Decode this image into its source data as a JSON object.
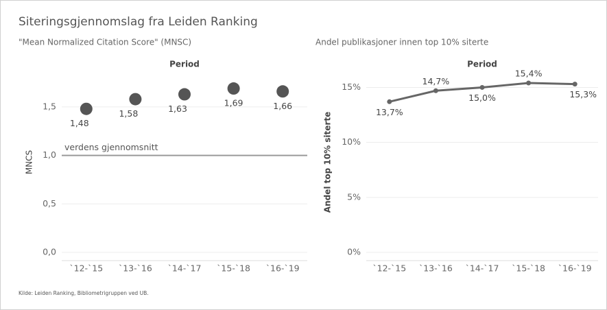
{
  "title": "Siteringsgjennomslag fra Leiden Ranking",
  "footer": "Kilde: Leiden Ranking, Bibliometrigruppen ved UB.",
  "chart_data": [
    {
      "type": "dot",
      "subtitle": "\"Mean Normalized Citation Score\" (MNSC)",
      "column_header": "Period",
      "y_label": "MNCS",
      "categories": [
        "`12-`15",
        "`13-`16",
        "`14-`17",
        "`15-`18",
        "`16-`19"
      ],
      "values": [
        1.48,
        1.58,
        1.63,
        1.69,
        1.66
      ],
      "value_labels": [
        "1,48",
        "1,58",
        "1,63",
        "1,69",
        "1,66"
      ],
      "color": "#555555",
      "ylim": [
        0,
        1.86
      ],
      "yticks": [
        {
          "value": 0,
          "label": "0,0"
        },
        {
          "value": 0.5,
          "label": "0,5"
        },
        {
          "value": 1,
          "label": "1,0"
        },
        {
          "value": 1.5,
          "label": "1,5"
        }
      ],
      "grid": true,
      "reference_line": {
        "value": 1,
        "label": "verdens gjennomsnitt"
      }
    },
    {
      "type": "line",
      "subtitle": "Andel publikasjoner innen top 10% siterte",
      "column_header": "Period",
      "y_label": "Andel top 10% siterte",
      "categories": [
        "`12-`15",
        "`13-`16",
        "`14-`17",
        "`15-`18",
        "`16-`19"
      ],
      "values": [
        13.7,
        14.7,
        15.0,
        15.4,
        15.3
      ],
      "value_labels": [
        "13,7%",
        "14,7%",
        "15,0%",
        "15,4%",
        "15,3%"
      ],
      "color": "#666666",
      "ylim": [
        0,
        16.4
      ],
      "yticks": [
        {
          "value": 0,
          "label": "0%"
        },
        {
          "value": 5,
          "label": "5%"
        },
        {
          "value": 10,
          "label": "10%"
        },
        {
          "value": 15,
          "label": "15%"
        }
      ],
      "grid": true
    }
  ]
}
